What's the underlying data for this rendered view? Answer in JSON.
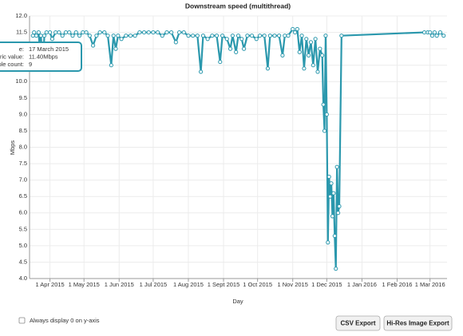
{
  "chart_data": {
    "type": "line",
    "title": "Downstream speed (multithread)",
    "x_label": "Day",
    "y_label": "Mbps",
    "color": "#2b98ad",
    "grid": true,
    "x": [
      "2015-03-17",
      "2015-03-18",
      "2015-03-20",
      "2015-03-22",
      "2015-03-23",
      "2015-03-24",
      "2015-03-26",
      "2015-03-27",
      "2015-03-29",
      "2015-04-01",
      "2015-04-03",
      "2015-04-06",
      "2015-04-09",
      "2015-04-12",
      "2015-04-15",
      "2015-04-18",
      "2015-04-21",
      "2015-04-24",
      "2015-04-27",
      "2015-04-30",
      "2015-05-03",
      "2015-05-06",
      "2015-05-09",
      "2015-05-12",
      "2015-05-15",
      "2015-05-19",
      "2015-05-22",
      "2015-05-25",
      "2015-05-27",
      "2015-05-29",
      "2015-05-31",
      "2015-06-03",
      "2015-06-07",
      "2015-06-11",
      "2015-06-15",
      "2015-06-19",
      "2015-06-23",
      "2015-06-27",
      "2015-07-01",
      "2015-07-05",
      "2015-07-09",
      "2015-07-13",
      "2015-07-17",
      "2015-07-21",
      "2015-07-24",
      "2015-07-28",
      "2015-08-01",
      "2015-08-05",
      "2015-08-09",
      "2015-08-12",
      "2015-08-14",
      "2015-08-18",
      "2015-08-22",
      "2015-08-26",
      "2015-08-29",
      "2015-08-31",
      "2015-09-04",
      "2015-09-07",
      "2015-09-09",
      "2015-09-12",
      "2015-09-14",
      "2015-09-17",
      "2015-09-19",
      "2015-09-22",
      "2015-09-26",
      "2015-09-30",
      "2015-10-03",
      "2015-10-07",
      "2015-10-10",
      "2015-10-12",
      "2015-10-16",
      "2015-10-20",
      "2015-10-23",
      "2015-10-25",
      "2015-10-28",
      "2015-11-01",
      "2015-11-03",
      "2015-11-05",
      "2015-11-07",
      "2015-11-09",
      "2015-11-11",
      "2015-11-13",
      "2015-11-15",
      "2015-11-17",
      "2015-11-19",
      "2015-11-21",
      "2015-11-23",
      "2015-11-25",
      "2015-11-27",
      "2015-11-28",
      "2015-11-29",
      "2015-11-30",
      "2015-12-01",
      "2015-12-02",
      "2015-12-03",
      "2015-12-04",
      "2015-12-05",
      "2015-12-06",
      "2015-12-07",
      "2015-12-08",
      "2015-12-09",
      "2015-12-10",
      "2015-12-11",
      "2015-12-12",
      "2015-12-14",
      "2016-02-25",
      "2016-02-28",
      "2016-03-01",
      "2016-03-03",
      "2016-03-05",
      "2016-03-07",
      "2016-03-10",
      "2016-03-13"
    ],
    "values": [
      11.4,
      11.5,
      11.4,
      11.5,
      11.0,
      11.4,
      10.4,
      11.4,
      11.5,
      11.5,
      11.3,
      11.5,
      11.5,
      11.4,
      11.5,
      11.5,
      11.4,
      11.5,
      11.4,
      11.5,
      11.5,
      11.4,
      11.1,
      11.4,
      11.5,
      11.5,
      11.4,
      10.5,
      11.4,
      11.0,
      11.4,
      11.3,
      11.4,
      11.4,
      11.4,
      11.5,
      11.5,
      11.5,
      11.5,
      11.5,
      11.4,
      11.5,
      11.5,
      11.2,
      11.5,
      11.5,
      11.4,
      11.4,
      11.4,
      10.3,
      11.4,
      11.3,
      11.4,
      11.4,
      10.6,
      11.4,
      11.3,
      11.0,
      11.4,
      10.9,
      11.4,
      11.3,
      11.0,
      11.4,
      11.4,
      11.3,
      11.4,
      11.4,
      10.4,
      11.4,
      11.4,
      11.4,
      10.8,
      11.4,
      11.4,
      11.6,
      11.5,
      11.6,
      10.9,
      11.4,
      10.4,
      11.3,
      10.8,
      11.2,
      10.5,
      11.3,
      10.3,
      11.0,
      10.8,
      9.3,
      8.5,
      11.4,
      9.0,
      5.1,
      7.1,
      6.5,
      6.9,
      5.9,
      6.6,
      5.3,
      4.3,
      7.4,
      6.0,
      6.2,
      11.4,
      11.5,
      11.5,
      11.5,
      11.4,
      11.5,
      11.4,
      11.5,
      11.4
    ],
    "xlim": [
      "2015-03-14",
      "2016-03-16"
    ],
    "xticks": [
      {
        "value": "2015-04-01",
        "label": "1 Apr 2015"
      },
      {
        "value": "2015-05-01",
        "label": "1 May 2015"
      },
      {
        "value": "2015-06-01",
        "label": "1 Jun 2015"
      },
      {
        "value": "2015-07-01",
        "label": "1 Jul 2015"
      },
      {
        "value": "2015-08-01",
        "label": "1 Aug 2015"
      },
      {
        "value": "2015-09-01",
        "label": "1 Sept 2015"
      },
      {
        "value": "2015-10-01",
        "label": "1 Oct 2015"
      },
      {
        "value": "2015-11-01",
        "label": "1 Nov 2015"
      },
      {
        "value": "2015-12-01",
        "label": "1 Dec 2015"
      },
      {
        "value": "2016-01-01",
        "label": "1 Jan 2016"
      },
      {
        "value": "2016-02-01",
        "label": "1 Feb 2016"
      },
      {
        "value": "2016-03-01",
        "label": "1 Mar 2016"
      }
    ],
    "ylim": [
      4,
      12
    ],
    "yticks": [
      {
        "value": 4,
        "label": "4.0"
      },
      4.5,
      {
        "value": 5,
        "label": "5.0"
      },
      5.5,
      {
        "value": 6,
        "label": "6.0"
      },
      6.5,
      {
        "value": 7,
        "label": "7.0"
      },
      7.5,
      {
        "value": 8,
        "label": "8.0"
      },
      8.5,
      {
        "value": 9,
        "label": "9.0"
      },
      9.5,
      {
        "value": 10,
        "label": "10.0"
      },
      10.5,
      {
        "value": 11,
        "label": "11.0"
      },
      11.5,
      {
        "value": 12,
        "label": "12.0"
      }
    ]
  },
  "tooltip": {
    "rows": [
      [
        "e:",
        "17 March 2015"
      ],
      [
        "ric value:",
        "11.40Mbps"
      ],
      [
        "ple count:",
        "9"
      ]
    ]
  },
  "controls": {
    "checkbox_label": "Always display 0 on y-axis",
    "buttons": [
      "CSV Export",
      "Hi-Res Image Export"
    ]
  }
}
